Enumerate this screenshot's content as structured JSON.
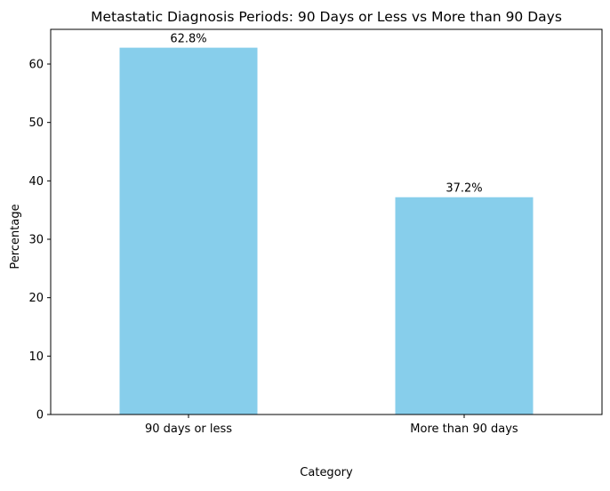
{
  "chart_data": {
    "type": "bar",
    "title": "Metastatic Diagnosis Periods: 90 Days or Less vs More than 90 Days",
    "xlabel": "Category",
    "ylabel": "Percentage",
    "categories": [
      "90 days or less",
      "More than 90 days"
    ],
    "values": [
      62.8,
      37.2
    ],
    "data_labels": [
      "62.8%",
      "37.2%"
    ],
    "ylim": [
      0,
      65.94
    ],
    "yticks": [
      0,
      10,
      20,
      30,
      40,
      50,
      60
    ],
    "ytick_labels": [
      "0",
      "10",
      "20",
      "30",
      "40",
      "50",
      "60"
    ],
    "bar_color": "#87ceeb",
    "grid": false,
    "legend": "none"
  }
}
